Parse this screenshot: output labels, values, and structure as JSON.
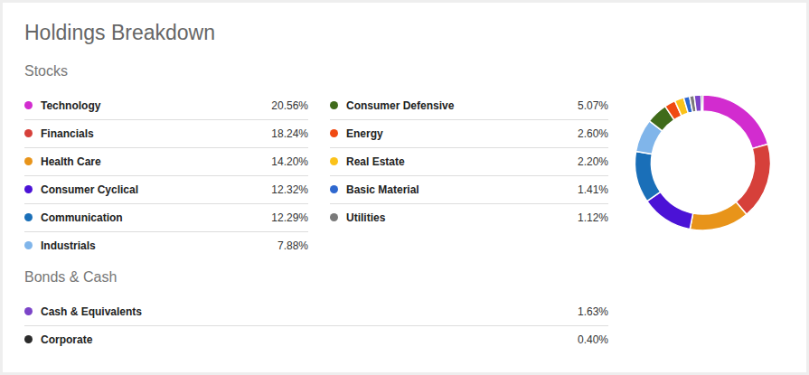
{
  "chart_data": {
    "type": "pie",
    "title": "Holdings Breakdown",
    "series": [
      {
        "name": "Stocks",
        "categories": [
          "Technology",
          "Financials",
          "Health Care",
          "Consumer Cyclical",
          "Communication",
          "Industrials",
          "Consumer Defensive",
          "Energy",
          "Real Estate",
          "Basic Material",
          "Utilities"
        ],
        "values": [
          20.56,
          18.24,
          14.2,
          12.32,
          12.29,
          7.88,
          5.07,
          2.6,
          2.2,
          1.41,
          1.12
        ],
        "value_labels": [
          "20.56%",
          "18.24%",
          "14.20%",
          "12.32%",
          "12.29%",
          "7.88%",
          "5.07%",
          "2.60%",
          "2.20%",
          "1.41%",
          "1.12%"
        ],
        "colors": [
          "#d22ccf",
          "#d6403a",
          "#e8941a",
          "#4b12d6",
          "#1a6fb8",
          "#80b5ea",
          "#406b1a",
          "#f04a12",
          "#fbc21a",
          "#2f68cf",
          "#7a7a7a"
        ]
      },
      {
        "name": "Bonds & Cash",
        "categories": [
          "Cash & Equivalents",
          "Corporate"
        ],
        "values": [
          1.63,
          0.4
        ],
        "value_labels": [
          "1.63%",
          "0.40%"
        ],
        "colors": [
          "#7b44c8",
          "#2b2b2b"
        ]
      }
    ]
  }
}
